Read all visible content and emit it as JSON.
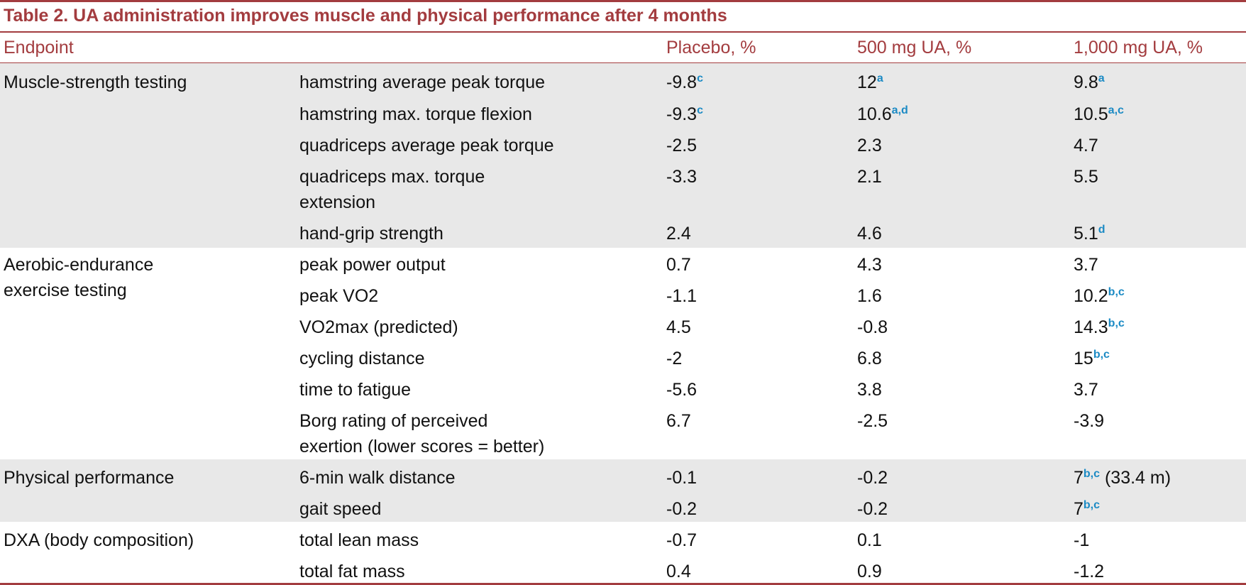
{
  "table": {
    "title": "Table 2.  UA administration improves muscle and physical performance after 4 months",
    "headers": {
      "endpoint": "Endpoint",
      "placebo": "Placebo, %",
      "dose500": "500 mg UA, %",
      "dose1000": "1,000 mg UA, %"
    },
    "groups": [
      {
        "label_lines": [
          "Muscle-strength testing"
        ]
      },
      {
        "label_lines": [
          "Aerobic-endurance",
          "exercise testing"
        ]
      },
      {
        "label_lines": [
          "Physical performance"
        ]
      },
      {
        "label_lines": [
          "DXA (body composition)"
        ]
      }
    ],
    "rows": [
      {
        "measure": {
          "text": "hamstring average peak torque"
        },
        "placebo": {
          "value": "-9.8",
          "sup": "c"
        },
        "dose500": {
          "value": "12",
          "sup": "a"
        },
        "dose1000": {
          "value": "9.8",
          "sup": "a"
        }
      },
      {
        "measure": {
          "text": "hamstring max. torque flexion"
        },
        "placebo": {
          "value": "-9.3",
          "sup": "c"
        },
        "dose500": {
          "value": "10.6",
          "sup": "a,d"
        },
        "dose1000": {
          "value": "10.5",
          "sup": "a,c"
        }
      },
      {
        "measure": {
          "text": "quadriceps average peak torque"
        },
        "placebo": {
          "value": "-2.5"
        },
        "dose500": {
          "value": "2.3"
        },
        "dose1000": {
          "value": "4.7"
        }
      },
      {
        "measure": {
          "text": "quadriceps max. torque",
          "text2": "extension"
        },
        "placebo": {
          "value": "-3.3"
        },
        "dose500": {
          "value": "2.1"
        },
        "dose1000": {
          "value": "5.5"
        }
      },
      {
        "measure": {
          "text": "hand-grip strength"
        },
        "placebo": {
          "value": "2.4"
        },
        "dose500": {
          "value": "4.6"
        },
        "dose1000": {
          "value": "5.1",
          "sup": "d"
        }
      },
      {
        "measure": {
          "text": "peak power output"
        },
        "placebo": {
          "value": "0.7"
        },
        "dose500": {
          "value": "4.3"
        },
        "dose1000": {
          "value": "3.7"
        }
      },
      {
        "measure": {
          "text": "peak VO",
          "sub": "2"
        },
        "placebo": {
          "value": "-1.1"
        },
        "dose500": {
          "value": "1.6"
        },
        "dose1000": {
          "value": "10.2",
          "sup": "b,c"
        }
      },
      {
        "measure": {
          "text": "VO",
          "sub": "2max",
          "after": " (predicted)"
        },
        "placebo": {
          "value": "4.5"
        },
        "dose500": {
          "value": "-0.8"
        },
        "dose1000": {
          "value": "14.3",
          "sup": "b,c"
        }
      },
      {
        "measure": {
          "text": "cycling distance"
        },
        "placebo": {
          "value": "-2"
        },
        "dose500": {
          "value": "6.8"
        },
        "dose1000": {
          "value": "15",
          "sup": "b,c"
        }
      },
      {
        "measure": {
          "text": "time to fatigue"
        },
        "placebo": {
          "value": "-5.6"
        },
        "dose500": {
          "value": "3.8"
        },
        "dose1000": {
          "value": "3.7"
        }
      },
      {
        "measure": {
          "text": "Borg rating of perceived",
          "text2": "exertion (lower scores = better)"
        },
        "placebo": {
          "value": "6.7"
        },
        "dose500": {
          "value": "-2.5"
        },
        "dose1000": {
          "value": "-3.9"
        }
      },
      {
        "measure": {
          "text": "6-min walk distance"
        },
        "placebo": {
          "value": "-0.1"
        },
        "dose500": {
          "value": "-0.2"
        },
        "dose1000": {
          "value": "7",
          "sup": "b,c",
          "after": " (33.4 m)"
        }
      },
      {
        "measure": {
          "text": "gait speed"
        },
        "placebo": {
          "value": "-0.2"
        },
        "dose500": {
          "value": "-0.2"
        },
        "dose1000": {
          "value": "7",
          "sup": "b,c"
        }
      },
      {
        "measure": {
          "text": "total lean mass"
        },
        "placebo": {
          "value": "-0.7"
        },
        "dose500": {
          "value": "0.1"
        },
        "dose1000": {
          "value": "-1"
        }
      },
      {
        "measure": {
          "text": "total fat mass"
        },
        "placebo": {
          "value": "0.4"
        },
        "dose500": {
          "value": "0.9"
        },
        "dose1000": {
          "value": "-1.2"
        }
      }
    ]
  }
}
